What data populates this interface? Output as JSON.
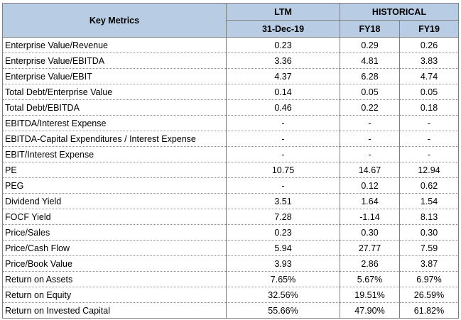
{
  "header": {
    "key_metrics": "Key Metrics",
    "ltm": "LTM",
    "historical": "HISTORICAL",
    "ltm_date": "31-Dec-19",
    "fy18": "FY18",
    "fy19": "FY19"
  },
  "rows": [
    {
      "metric": "Enterprise Value/Revenue",
      "ltm": "0.23",
      "fy18": "0.29",
      "fy19": "0.26"
    },
    {
      "metric": "Enterprise Value/EBITDA",
      "ltm": "3.36",
      "fy18": "4.81",
      "fy19": "3.83"
    },
    {
      "metric": "Enterprise Value/EBIT",
      "ltm": "4.37",
      "fy18": "6.28",
      "fy19": "4.74"
    },
    {
      "metric": "Total Debt/Enterprise Value",
      "ltm": "0.14",
      "fy18": "0.05",
      "fy19": "0.05"
    },
    {
      "metric": "Total Debt/EBITDA",
      "ltm": "0.46",
      "fy18": "0.22",
      "fy19": "0.18"
    },
    {
      "metric": "EBITDA/Interest Expense",
      "ltm": "-",
      "fy18": "-",
      "fy19": "-"
    },
    {
      "metric": "EBITDA-Capital Expenditures / Interest Expense",
      "ltm": "-",
      "fy18": "-",
      "fy19": "-"
    },
    {
      "metric": "EBIT/Interest Expense",
      "ltm": "-",
      "fy18": "-",
      "fy19": "-"
    },
    {
      "metric": "PE",
      "ltm": "10.75",
      "fy18": "14.67",
      "fy19": "12.94"
    },
    {
      "metric": "PEG",
      "ltm": "-",
      "fy18": "0.12",
      "fy19": "0.62"
    },
    {
      "metric": "Dividend Yield",
      "ltm": "3.51",
      "fy18": "1.64",
      "fy19": "1.54"
    },
    {
      "metric": "FOCF Yield",
      "ltm": "7.28",
      "fy18": "-1.14",
      "fy19": "8.13"
    },
    {
      "metric": "Price/Sales",
      "ltm": "0.23",
      "fy18": "0.30",
      "fy19": "0.30"
    },
    {
      "metric": "Price/Cash Flow",
      "ltm": "5.94",
      "fy18": "27.77",
      "fy19": "7.59"
    },
    {
      "metric": "Price/Book Value",
      "ltm": "3.93",
      "fy18": "2.86",
      "fy19": "3.87"
    },
    {
      "metric": "Return on Assets",
      "ltm": "7.65%",
      "fy18": "5.67%",
      "fy19": "6.97%"
    },
    {
      "metric": "Return on Equity",
      "ltm": "32.56%",
      "fy18": "19.51%",
      "fy19": "26.59%"
    },
    {
      "metric": "Return on Invested Capital",
      "ltm": "55.66%",
      "fy18": "47.90%",
      "fy19": "61.82%"
    }
  ]
}
